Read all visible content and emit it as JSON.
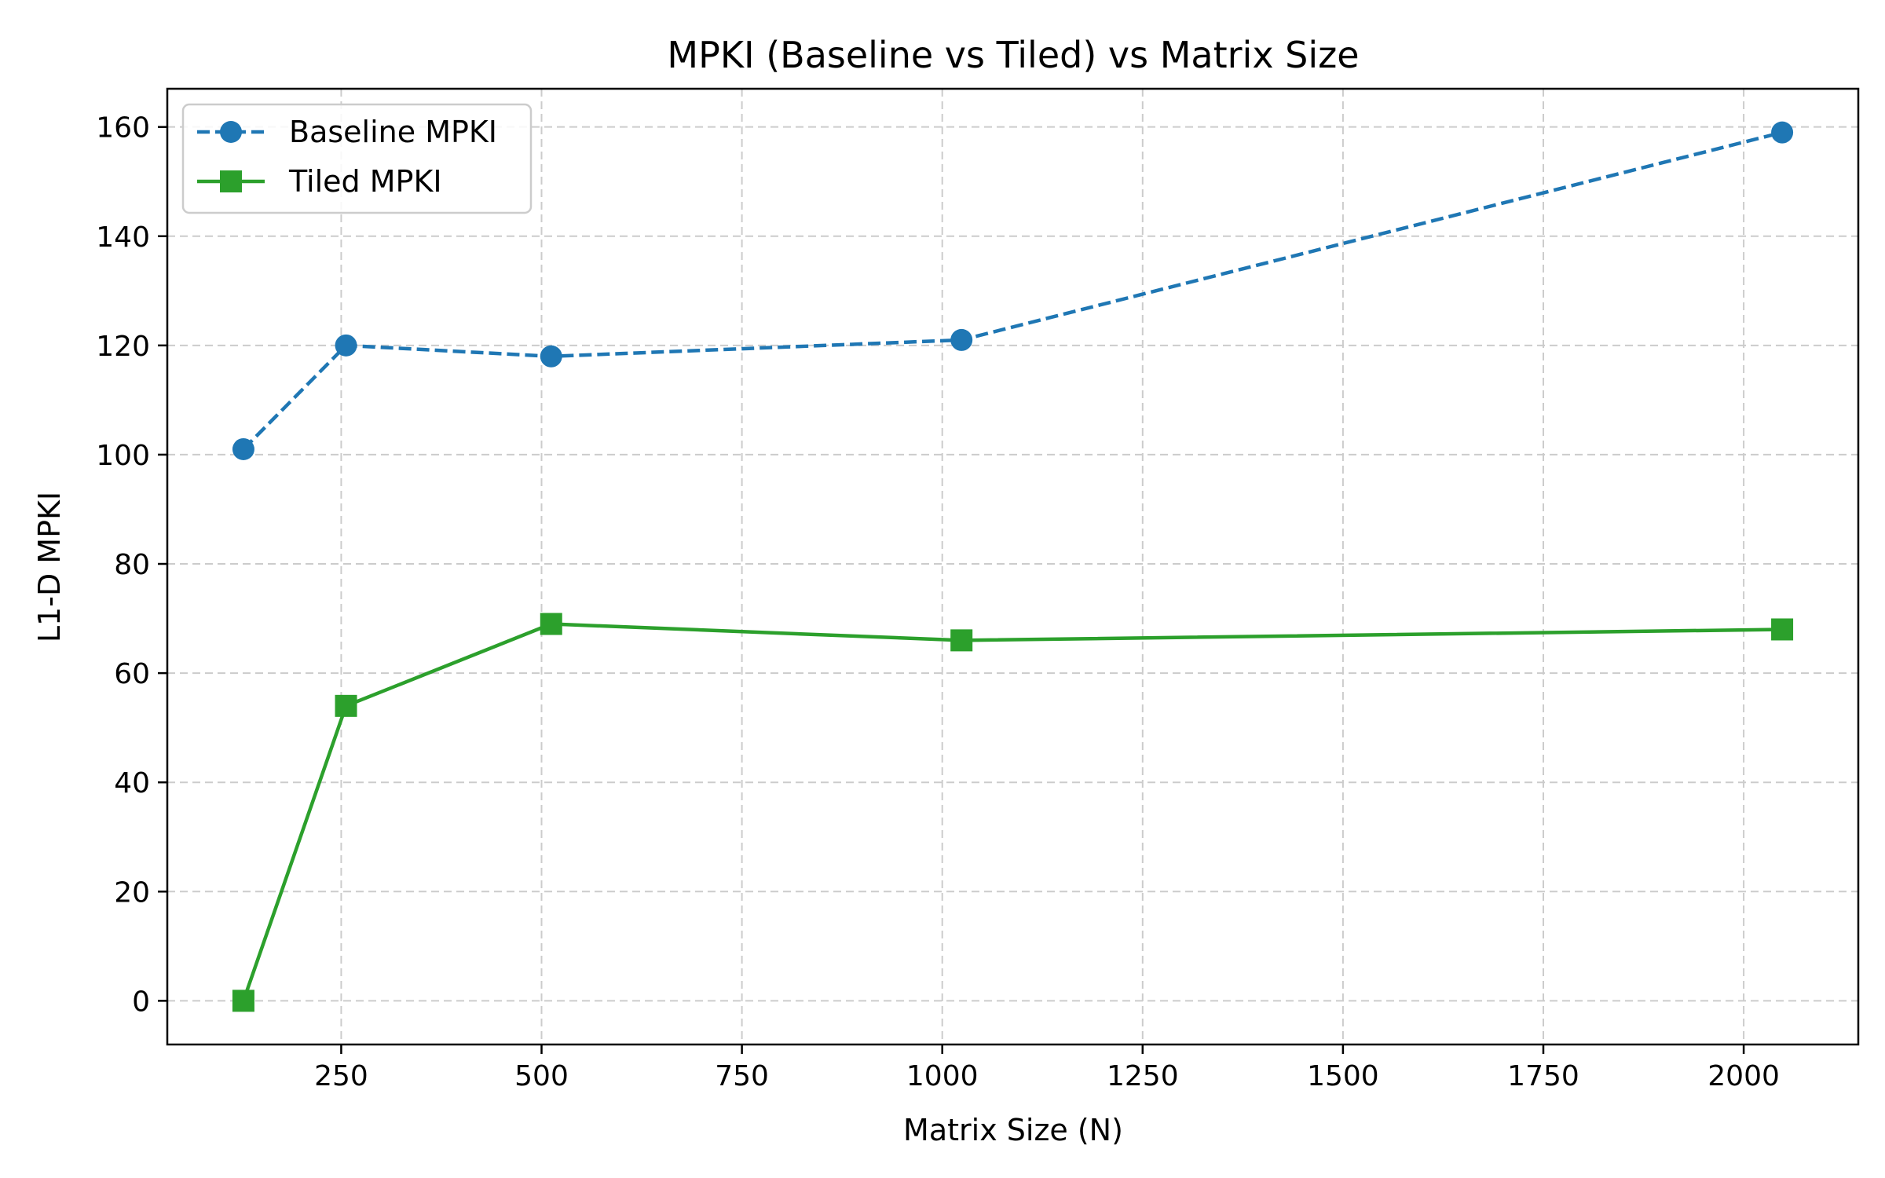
{
  "chart_data": {
    "type": "line",
    "title": "MPKI (Baseline vs Tiled) vs Matrix Size",
    "xlabel": "Matrix Size (N)",
    "ylabel": "L1-D MPKI",
    "x": [
      128,
      256,
      512,
      1024,
      2048
    ],
    "xlim": [
      33,
      2143
    ],
    "ylim": [
      -8,
      167
    ],
    "xticks": [
      250,
      500,
      750,
      1000,
      1250,
      1500,
      1750,
      2000
    ],
    "yticks": [
      0,
      20,
      40,
      60,
      80,
      100,
      120,
      140,
      160
    ],
    "grid": true,
    "legend_position": "top-left",
    "series": [
      {
        "name": "Baseline MPKI",
        "values": [
          101,
          120,
          118,
          121,
          159
        ],
        "color": "#1f77b4",
        "line_style": "dashed",
        "marker": "circle"
      },
      {
        "name": "Tiled MPKI",
        "values": [
          0,
          54,
          69,
          66,
          68
        ],
        "color": "#2ca02c",
        "line_style": "solid",
        "marker": "square"
      }
    ]
  }
}
